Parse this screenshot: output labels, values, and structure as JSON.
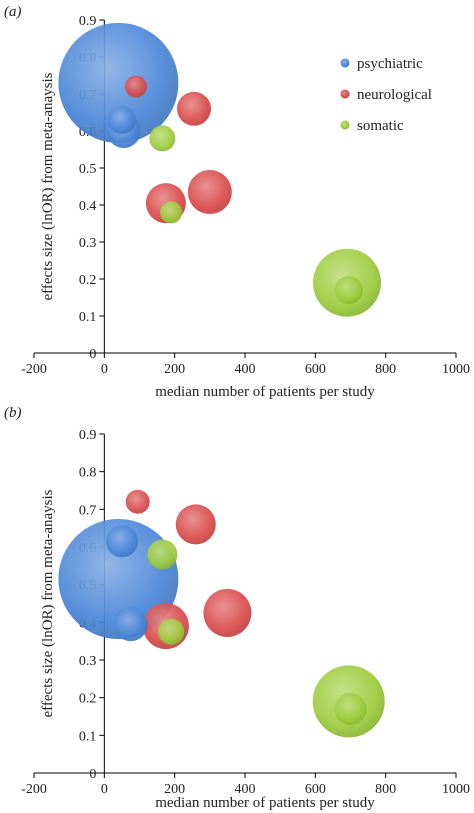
{
  "colors": {
    "psychiatric": "#4a86d8",
    "neurological": "#d94a4a",
    "somatic": "#9ccc3c"
  },
  "chart_data": [
    {
      "type": "scatter",
      "subtype": "bubble",
      "panel_label": "(a)",
      "xlabel": "median number of patients per study",
      "ylabel": "effects size (lnOR) from meta-anaysis",
      "xlim": [
        -200,
        1000
      ],
      "ylim": [
        0,
        0.9
      ],
      "x_ticks": [
        -200,
        0,
        200,
        400,
        600,
        800,
        1000
      ],
      "y_ticks": [
        0,
        0.1,
        0.2,
        0.3,
        0.4,
        0.5,
        0.6,
        0.7,
        0.8,
        0.9
      ],
      "grid": false,
      "legend": {
        "position": "top-right",
        "entries": [
          "psychiatric",
          "neurological",
          "somatic"
        ]
      },
      "series": [
        {
          "name": "psychiatric",
          "color_key": "psychiatric",
          "points": [
            {
              "x": 40,
              "y": 0.73,
              "size": 60
            },
            {
              "x": 50,
              "y": 0.63,
              "size": 14
            },
            {
              "x": 55,
              "y": 0.6,
              "size": 17
            }
          ]
        },
        {
          "name": "neurological",
          "color_key": "neurological",
          "points": [
            {
              "x": 90,
              "y": 0.72,
              "size": 11
            },
            {
              "x": 255,
              "y": 0.66,
              "size": 17
            },
            {
              "x": 300,
              "y": 0.435,
              "size": 22
            },
            {
              "x": 175,
              "y": 0.405,
              "size": 20
            }
          ]
        },
        {
          "name": "somatic",
          "color_key": "somatic",
          "points": [
            {
              "x": 165,
              "y": 0.58,
              "size": 13
            },
            {
              "x": 190,
              "y": 0.38,
              "size": 11
            },
            {
              "x": 690,
              "y": 0.19,
              "size": 34
            },
            {
              "x": 695,
              "y": 0.17,
              "size": 14
            }
          ]
        }
      ]
    },
    {
      "type": "scatter",
      "subtype": "bubble",
      "panel_label": "(b)",
      "xlabel": "median number of patients per study",
      "ylabel": "effects size (lnOR) from meta-anaysis",
      "xlim": [
        -200,
        1000
      ],
      "ylim": [
        0,
        0.9
      ],
      "x_ticks": [
        -200,
        0,
        200,
        400,
        600,
        800,
        1000
      ],
      "y_ticks": [
        0,
        0.1,
        0.2,
        0.3,
        0.4,
        0.5,
        0.6,
        0.7,
        0.8,
        0.9
      ],
      "grid": false,
      "series": [
        {
          "name": "psychiatric",
          "color_key": "psychiatric",
          "points": [
            {
              "x": 50,
              "y": 0.615,
              "size": 16
            },
            {
              "x": 75,
              "y": 0.395,
              "size": 17
            },
            {
              "x": 40,
              "y": 0.515,
              "size": 60
            }
          ]
        },
        {
          "name": "neurological",
          "color_key": "neurological",
          "points": [
            {
              "x": 95,
              "y": 0.72,
              "size": 12
            },
            {
              "x": 260,
              "y": 0.66,
              "size": 20
            },
            {
              "x": 350,
              "y": 0.425,
              "size": 24
            },
            {
              "x": 175,
              "y": 0.39,
              "size": 23
            }
          ]
        },
        {
          "name": "somatic",
          "color_key": "somatic",
          "points": [
            {
              "x": 165,
              "y": 0.58,
              "size": 15
            },
            {
              "x": 190,
              "y": 0.375,
              "size": 13
            },
            {
              "x": 695,
              "y": 0.19,
              "size": 36
            },
            {
              "x": 700,
              "y": 0.17,
              "size": 16
            }
          ]
        }
      ]
    }
  ]
}
